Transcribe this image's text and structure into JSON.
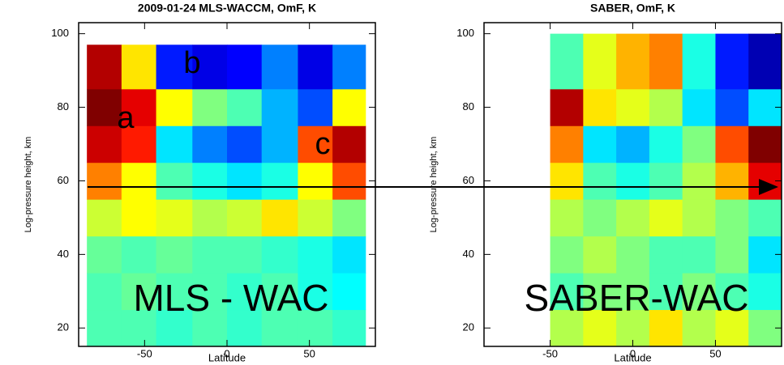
{
  "chart_data": [
    {
      "type": "heatmap",
      "title": "2009-01-24 MLS-WACCM, OmF, K",
      "xlabel": "Latitude",
      "ylabel": "Log-pressure height, km",
      "xlim": [
        -90,
        90
      ],
      "ylim": [
        15,
        103
      ],
      "xticks": [
        -50,
        0,
        50
      ],
      "yticks": [
        20,
        40,
        60,
        80,
        100
      ],
      "zlim": [
        -20,
        20
      ],
      "x_edges": [
        -85,
        -64,
        -43,
        -21,
        0,
        21,
        43,
        64,
        84
      ],
      "y_edges": [
        15,
        25,
        35,
        45,
        55,
        65,
        75,
        85,
        97
      ],
      "z": [
        [
          -2,
          -2,
          -3,
          -2,
          -3,
          -2,
          -2,
          -3
        ],
        [
          -2,
          -1,
          -2,
          -2,
          -3,
          -2,
          -4,
          -5
        ],
        [
          -1,
          -2,
          -1,
          -2,
          -2,
          -3,
          -4,
          -6
        ],
        [
          3,
          5,
          4,
          2,
          3,
          6,
          3,
          0
        ],
        [
          10,
          5,
          -2,
          -4,
          -6,
          -4,
          5,
          12
        ],
        [
          17,
          14,
          -6,
          -10,
          -12,
          -8,
          12,
          18
        ],
        [
          20,
          16,
          5,
          0,
          -2,
          -8,
          -12,
          5
        ],
        [
          18,
          6,
          -14,
          -16,
          -15,
          -10,
          -16,
          -10
        ]
      ],
      "annotations": [
        "a",
        "b",
        "c",
        "MLS - WAC"
      ]
    },
    {
      "type": "heatmap",
      "title": "SABER, OmF, K",
      "xlabel": "Latitude",
      "ylabel": "Log-pressure height, km",
      "xlim": [
        -90,
        90
      ],
      "ylim": [
        15,
        103
      ],
      "xticks": [
        -50,
        0,
        50
      ],
      "yticks": [
        20,
        40,
        60,
        80,
        100
      ],
      "zlim": [
        -20,
        20
      ],
      "x_edges": [
        -50,
        -30,
        -10,
        10,
        30,
        50,
        70,
        90
      ],
      "y_edges": [
        15,
        25,
        35,
        45,
        55,
        65,
        75,
        85,
        100
      ],
      "z": [
        [
          2,
          4,
          2,
          6,
          2,
          4,
          0
        ],
        [
          -2,
          0,
          0,
          -2,
          0,
          -2,
          -4
        ],
        [
          0,
          2,
          0,
          -2,
          -2,
          0,
          -6
        ],
        [
          2,
          0,
          2,
          4,
          2,
          0,
          -2
        ],
        [
          6,
          -2,
          -4,
          -2,
          2,
          8,
          16
        ],
        [
          10,
          -6,
          -8,
          -4,
          0,
          12,
          20
        ],
        [
          18,
          6,
          4,
          2,
          -6,
          -12,
          -6
        ],
        [
          -2,
          4,
          8,
          10,
          -4,
          -14,
          -18
        ]
      ],
      "annotations": [
        "SABER-WAC"
      ]
    }
  ]
}
